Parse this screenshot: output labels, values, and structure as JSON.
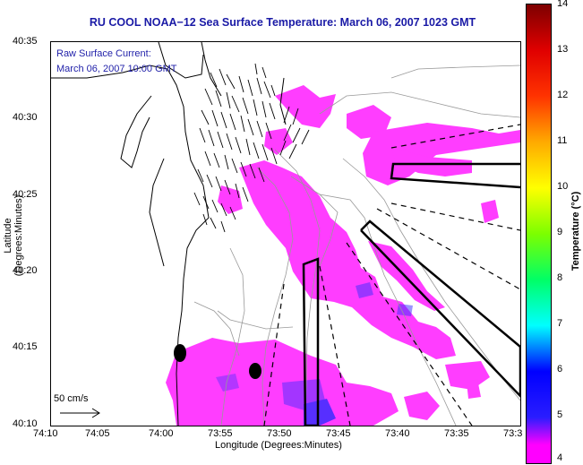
{
  "title": "RU COOL  NOAA−12  Sea Surface Temperature:  March 06, 2007 1023 GMT",
  "legend_title": "Raw Surface Current:",
  "legend_time": "March 06, 2007 10:00 GMT",
  "scale_label": "50 cm/s",
  "xlabel": "Longitude (Degrees:Minutes)",
  "ylabel": "Latitude (Degrees:Minutes)",
  "colorbar_label": "Temperature (°C)",
  "x_ticks": [
    "74:10",
    "74:05",
    "74:00",
    "73:55",
    "73:50",
    "73:45",
    "73:40",
    "73:35",
    "73:3"
  ],
  "y_ticks": [
    "40:35",
    "40:30",
    "40:25",
    "40:20",
    "40:15",
    "40:10"
  ],
  "colorbar_ticks": [
    "14",
    "13",
    "12",
    "11",
    "10",
    "9",
    "8",
    "7",
    "6",
    "5",
    "4"
  ],
  "colors": {
    "sst_warm": "#ff3dff",
    "sst_cool": "#3a2dff",
    "title": "#1a1aa6",
    "legend": "#2222aa"
  }
}
